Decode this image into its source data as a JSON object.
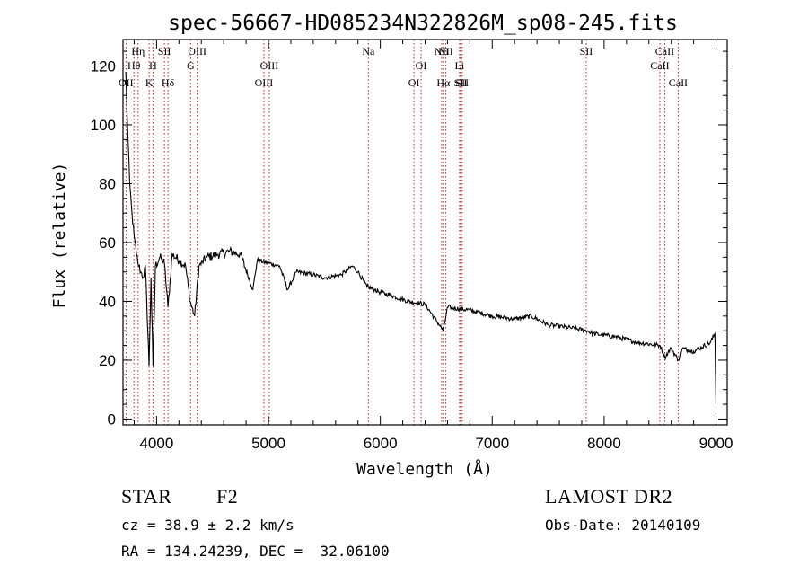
{
  "chart_data": {
    "type": "line",
    "title": "spec-56667-HD085234N322826M_sp08-245.fits",
    "xlabel": "Wavelength (Å)",
    "ylabel": "Flux (relative)",
    "xlim": [
      3700,
      9100
    ],
    "ylim": [
      -2,
      129
    ],
    "xticks": [
      4000,
      5000,
      6000,
      7000,
      8000,
      9000
    ],
    "yticks": [
      0,
      20,
      40,
      60,
      80,
      100,
      120
    ],
    "grid": false,
    "legend": "none",
    "spectrum_color": "#000000",
    "line_marker_color": "#b22222",
    "spectrum_anchors": [
      [
        3725,
        118
      ],
      [
        3740,
        100
      ],
      [
        3760,
        80
      ],
      [
        3780,
        70
      ],
      [
        3800,
        62
      ],
      [
        3820,
        56
      ],
      [
        3840,
        52
      ],
      [
        3860,
        50
      ],
      [
        3880,
        48
      ],
      [
        3900,
        52
      ],
      [
        3933,
        18
      ],
      [
        3950,
        48
      ],
      [
        3968,
        18
      ],
      [
        3990,
        52
      ],
      [
        4030,
        55
      ],
      [
        4070,
        53
      ],
      [
        4102,
        38
      ],
      [
        4140,
        56
      ],
      [
        4200,
        54
      ],
      [
        4260,
        52
      ],
      [
        4300,
        40
      ],
      [
        4340,
        35
      ],
      [
        4380,
        52
      ],
      [
        4450,
        55
      ],
      [
        4550,
        56
      ],
      [
        4650,
        57
      ],
      [
        4750,
        56
      ],
      [
        4861,
        44
      ],
      [
        4900,
        54
      ],
      [
        5000,
        53
      ],
      [
        5100,
        52
      ],
      [
        5172,
        44
      ],
      [
        5250,
        50
      ],
      [
        5400,
        49
      ],
      [
        5500,
        48
      ],
      [
        5650,
        49
      ],
      [
        5750,
        52
      ],
      [
        5800,
        50
      ],
      [
        5880,
        45
      ],
      [
        5950,
        44
      ],
      [
        6000,
        43
      ],
      [
        6100,
        42
      ],
      [
        6250,
        40
      ],
      [
        6400,
        39
      ],
      [
        6563,
        30
      ],
      [
        6600,
        38
      ],
      [
        6800,
        37
      ],
      [
        7000,
        35
      ],
      [
        7200,
        34
      ],
      [
        7350,
        35
      ],
      [
        7500,
        32
      ],
      [
        7700,
        31
      ],
      [
        7850,
        30
      ],
      [
        7900,
        29
      ],
      [
        8100,
        28
      ],
      [
        8300,
        26
      ],
      [
        8500,
        25
      ],
      [
        8542,
        21
      ],
      [
        8600,
        24
      ],
      [
        8662,
        20
      ],
      [
        8700,
        24
      ],
      [
        8800,
        23
      ],
      [
        8950,
        26
      ],
      [
        8990,
        29
      ],
      [
        9000,
        5
      ]
    ],
    "lines": [
      {
        "name": "OII",
        "x": 3727,
        "row": 3
      },
      {
        "name": "Hθ",
        "x": 3798,
        "row": 2
      },
      {
        "name": "Hη",
        "x": 3835,
        "row": 1
      },
      {
        "name": "K",
        "x": 3934,
        "row": 3
      },
      {
        "name": "H",
        "x": 3968,
        "row": 2
      },
      {
        "name": "SII",
        "x": 4070,
        "row": 1
      },
      {
        "name": "Hδ",
        "x": 4102,
        "row": 3
      },
      {
        "name": "G",
        "x": 4304,
        "row": 2
      },
      {
        "name": "OIII",
        "x": 4363,
        "row": 1
      },
      {
        "name": "OIII",
        "x": 4959,
        "row": 3
      },
      {
        "name": "OIII",
        "x": 5007,
        "row": 2
      },
      {
        "name": "Na",
        "x": 5893,
        "row": 1
      },
      {
        "name": "OI",
        "x": 6300,
        "row": 3
      },
      {
        "name": "OI",
        "x": 6364,
        "row": 2
      },
      {
        "name": "NII",
        "x": 6548,
        "row": 1
      },
      {
        "name": "Hα",
        "x": 6563,
        "row": 3
      },
      {
        "name": "NII",
        "x": 6584,
        "row": 1
      },
      {
        "name": "Li",
        "x": 6708,
        "row": 2
      },
      {
        "name": "SII",
        "x": 6717,
        "row": 3
      },
      {
        "name": "SII",
        "x": 6731,
        "row": 3
      },
      {
        "name": "SII",
        "x": 7840,
        "row": 1
      },
      {
        "name": "CaII",
        "x": 8498,
        "row": 2
      },
      {
        "name": "CaII",
        "x": 8542,
        "row": 1
      },
      {
        "name": "CaII",
        "x": 8662,
        "row": 3
      }
    ]
  },
  "info": {
    "object_class": "STAR",
    "subclass": "F2",
    "survey": "LAMOST DR2",
    "redshift": "cz = 38.9 ± 2.2 km/s",
    "obs_date": "Obs-Date: 20140109",
    "coords": "RA = 134.24239, DEC =  32.06100"
  }
}
